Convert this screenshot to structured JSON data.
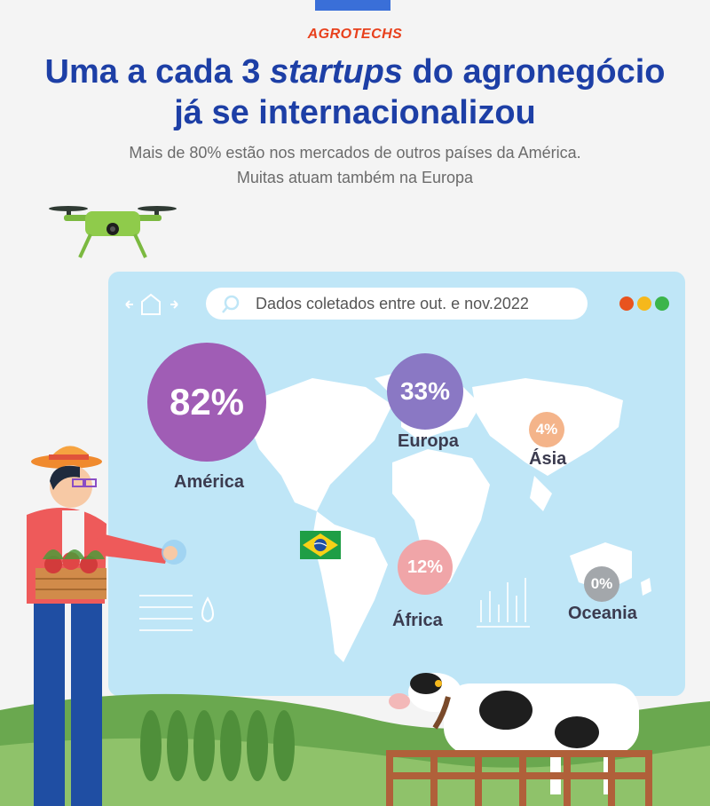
{
  "header": {
    "kicker": "AGROTECHS",
    "title_part1": "Uma a cada 3 ",
    "title_italic": "startups",
    "title_part2": " do agronegócio",
    "title_line2": "já se internacionalizou",
    "subtitle_line1": "Mais de 80% estão nos mercados de outros países da América.",
    "subtitle_line2": "Muitas atuam também na Europa"
  },
  "browser": {
    "search_text": "Dados coletados entre out. e nov.2022",
    "dot_colors": [
      "#e8531e",
      "#f5b81c",
      "#3bb54a"
    ]
  },
  "regions": [
    {
      "name": "América",
      "value": "82%",
      "color": "#a05db5"
    },
    {
      "name": "Europa",
      "value": "33%",
      "color": "#8a78c4"
    },
    {
      "name": "Ásia",
      "value": "4%",
      "color": "#f4b48a"
    },
    {
      "name": "África",
      "value": "12%",
      "color": "#f0a5a8"
    },
    {
      "name": "Oceania",
      "value": "0%",
      "color": "#a3a7ab"
    }
  ],
  "icons": [
    "drone-icon",
    "home-icon",
    "search-icon",
    "brazil-flag-icon"
  ]
}
